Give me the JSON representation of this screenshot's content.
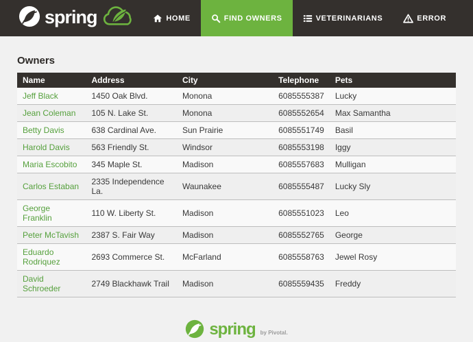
{
  "colors": {
    "accent_green": "#6db33f",
    "dark": "#34302d",
    "link_green": "#55a03c",
    "page_background": "#f1f1f1"
  },
  "nav": {
    "brand": "spring",
    "items": [
      {
        "label": "HOME",
        "icon": "home-icon",
        "active": false
      },
      {
        "label": "FIND OWNERS",
        "icon": "search-icon",
        "active": true
      },
      {
        "label": "VETERINARIANS",
        "icon": "list-icon",
        "active": false
      },
      {
        "label": "ERROR",
        "icon": "warning-icon",
        "active": false
      }
    ]
  },
  "page": {
    "title": "Owners"
  },
  "table": {
    "headers": [
      "Name",
      "Address",
      "City",
      "Telephone",
      "Pets"
    ],
    "rows": [
      {
        "name": "Jeff Black",
        "address": "1450 Oak Blvd.",
        "city": "Monona",
        "telephone": "6085555387",
        "pets": "Lucky"
      },
      {
        "name": "Jean Coleman",
        "address": "105 N. Lake St.",
        "city": "Monona",
        "telephone": "6085552654",
        "pets": "Max Samantha"
      },
      {
        "name": "Betty Davis",
        "address": "638 Cardinal Ave.",
        "city": "Sun Prairie",
        "telephone": "6085551749",
        "pets": "Basil"
      },
      {
        "name": "Harold Davis",
        "address": "563 Friendly St.",
        "city": "Windsor",
        "telephone": "6085553198",
        "pets": "Iggy"
      },
      {
        "name": "Maria Escobito",
        "address": "345 Maple St.",
        "city": "Madison",
        "telephone": "6085557683",
        "pets": "Mulligan"
      },
      {
        "name": "Carlos Estaban",
        "address": "2335 Independence La.",
        "city": "Waunakee",
        "telephone": "6085555487",
        "pets": "Lucky Sly"
      },
      {
        "name": "George Franklin",
        "address": "110 W. Liberty St.",
        "city": "Madison",
        "telephone": "6085551023",
        "pets": "Leo"
      },
      {
        "name": "Peter McTavish",
        "address": "2387 S. Fair Way",
        "city": "Madison",
        "telephone": "6085552765",
        "pets": "George"
      },
      {
        "name": "Eduardo Rodriquez",
        "address": "2693 Commerce St.",
        "city": "McFarland",
        "telephone": "6085558763",
        "pets": "Jewel Rosy"
      },
      {
        "name": "David Schroeder",
        "address": "2749 Blackhawk Trail",
        "city": "Madison",
        "telephone": "6085559435",
        "pets": "Freddy"
      }
    ]
  },
  "footer": {
    "brand": "spring",
    "byline": "by Pivotal."
  }
}
